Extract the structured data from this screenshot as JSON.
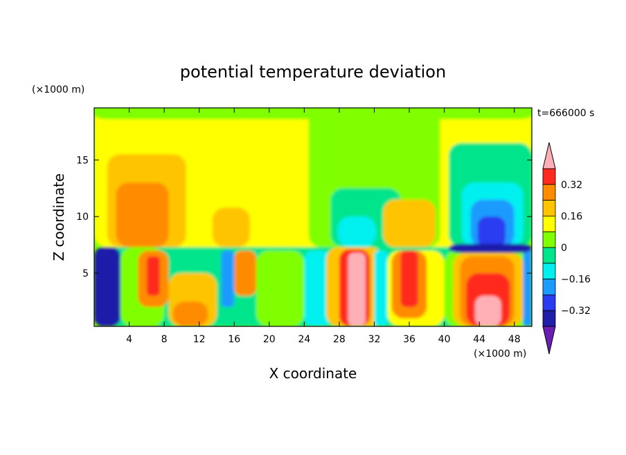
{
  "chart_data": {
    "type": "heatmap",
    "title": "potential temperature deviation",
    "xlabel": "X coordinate",
    "ylabel": "Z coordinate",
    "x_unit": "(×1000 m)",
    "y_unit": "(×1000 m)",
    "time_label": "t=666000 s",
    "xlim": [
      0,
      50
    ],
    "ylim": [
      0.3,
      19.6
    ],
    "x_ticks": [
      4,
      8,
      12,
      16,
      20,
      24,
      28,
      32,
      36,
      40,
      44,
      48
    ],
    "y_ticks": [
      5,
      10,
      15
    ],
    "colorbar": {
      "levels": [
        -0.4,
        -0.32,
        -0.24,
        -0.16,
        -0.08,
        0,
        0.08,
        0.16,
        0.24,
        0.32,
        0.4
      ],
      "colors": [
        "#6a1fb2",
        "#1f1fa8",
        "#2a3cf0",
        "#1e9bff",
        "#00f0f0",
        "#00e58c",
        "#7fff00",
        "#ffff00",
        "#ffc400",
        "#ff8c00",
        "#ff2a1e",
        "#ffb0b6"
      ],
      "tick_labels": [
        "0.32",
        "0.16",
        "0",
        "−0.16",
        "−0.32"
      ],
      "tick_values": [
        0.32,
        0.16,
        0,
        -0.16,
        -0.32
      ]
    },
    "regions": [
      {
        "x": [
          0,
          50
        ],
        "z": [
          7.3,
          19.6
        ],
        "value": 0.08
      },
      {
        "x": [
          0,
          50
        ],
        "z": [
          18.6,
          19.6
        ],
        "value": 0.0
      },
      {
        "x": [
          1.5,
          10.5
        ],
        "z": [
          7.3,
          15.5
        ],
        "value": 0.16
      },
      {
        "x": [
          2.5,
          8.5
        ],
        "z": [
          7.3,
          13.0
        ],
        "value": 0.24
      },
      {
        "x": [
          13.5,
          17.8
        ],
        "z": [
          7.3,
          10.8
        ],
        "value": 0.16
      },
      {
        "x": [
          24.5,
          39.5
        ],
        "z": [
          7.3,
          19.6
        ],
        "value": 0.0
      },
      {
        "x": [
          27.0,
          35.0
        ],
        "z": [
          7.3,
          12.5
        ],
        "value": -0.08
      },
      {
        "x": [
          27.8,
          32.2
        ],
        "z": [
          7.3,
          10.0
        ],
        "value": -0.16
      },
      {
        "x": [
          33.0,
          39.0
        ],
        "z": [
          7.3,
          11.5
        ],
        "value": 0.16
      },
      {
        "x": [
          40.5,
          50
        ],
        "z": [
          7.3,
          16.5
        ],
        "value": -0.08
      },
      {
        "x": [
          42.0,
          49.0
        ],
        "z": [
          7.3,
          13.0
        ],
        "value": -0.16
      },
      {
        "x": [
          43.0,
          48.0
        ],
        "z": [
          7.3,
          11.5
        ],
        "value": -0.24
      },
      {
        "x": [
          43.8,
          47.0
        ],
        "z": [
          7.3,
          10.0
        ],
        "value": -0.32
      },
      {
        "x": [
          0,
          50
        ],
        "z": [
          0.3,
          7.3
        ],
        "value": -0.08
      },
      {
        "x": [
          0,
          3.0
        ],
        "z": [
          0.3,
          7.3
        ],
        "value": -0.4
      },
      {
        "x": [
          3.0,
          8.0
        ],
        "z": [
          0.3,
          7.3
        ],
        "value": 0.0
      },
      {
        "x": [
          5.0,
          8.5
        ],
        "z": [
          2.0,
          7.0
        ],
        "value": 0.24
      },
      {
        "x": [
          6.0,
          7.5
        ],
        "z": [
          3.0,
          6.5
        ],
        "value": 0.32
      },
      {
        "x": [
          8.5,
          14.0
        ],
        "z": [
          0.3,
          5.0
        ],
        "value": 0.16
      },
      {
        "x": [
          9.0,
          13.0
        ],
        "z": [
          0.3,
          2.5
        ],
        "value": 0.24
      },
      {
        "x": [
          14.5,
          16.0
        ],
        "z": [
          2.0,
          7.0
        ],
        "value": -0.24
      },
      {
        "x": [
          16.0,
          18.5
        ],
        "z": [
          3.0,
          7.0
        ],
        "value": 0.24
      },
      {
        "x": [
          18.5,
          24.0
        ],
        "z": [
          0.3,
          7.0
        ],
        "value": 0.0
      },
      {
        "x": [
          24.0,
          27.0
        ],
        "z": [
          0.3,
          7.0
        ],
        "value": -0.16
      },
      {
        "x": [
          26.5,
          33.0
        ],
        "z": [
          0.3,
          7.3
        ],
        "value": 0.16
      },
      {
        "x": [
          28.0,
          31.5
        ],
        "z": [
          0.3,
          7.1
        ],
        "value": 0.32
      },
      {
        "x": [
          29.0,
          31.0
        ],
        "z": [
          0.3,
          6.8
        ],
        "value": 0.4
      },
      {
        "x": [
          32.0,
          33.5
        ],
        "z": [
          0.3,
          7.0
        ],
        "value": -0.16
      },
      {
        "x": [
          33.5,
          40.0
        ],
        "z": [
          0.3,
          7.0
        ],
        "value": 0.08
      },
      {
        "x": [
          34.0,
          38.0
        ],
        "z": [
          1.0,
          7.0
        ],
        "value": 0.24
      },
      {
        "x": [
          35.0,
          37.0
        ],
        "z": [
          2.0,
          7.0
        ],
        "value": 0.32
      },
      {
        "x": [
          40.0,
          50
        ],
        "z": [
          0.3,
          7.0
        ],
        "value": 0.0
      },
      {
        "x": [
          41.0,
          49.0
        ],
        "z": [
          0.3,
          6.8
        ],
        "value": 0.16
      },
      {
        "x": [
          41.8,
          48.0
        ],
        "z": [
          0.3,
          6.5
        ],
        "value": 0.24
      },
      {
        "x": [
          42.5,
          47.5
        ],
        "z": [
          0.3,
          5.0
        ],
        "value": 0.32
      },
      {
        "x": [
          43.5,
          46.5
        ],
        "z": [
          0.3,
          3.0
        ],
        "value": 0.4
      },
      {
        "x": [
          49.0,
          50
        ],
        "z": [
          0.3,
          7.3
        ],
        "value": -0.24
      },
      {
        "x": [
          40.5,
          50
        ],
        "z": [
          6.8,
          7.6
        ],
        "value": -0.4
      }
    ]
  }
}
